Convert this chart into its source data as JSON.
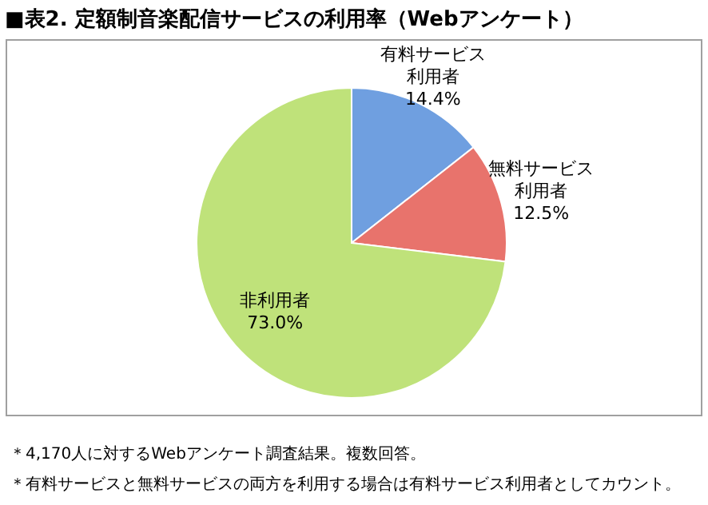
{
  "chart_data": {
    "type": "pie",
    "title": "■表2. 定額制音楽配信サービスの利用率（Webアンケート）",
    "categories": [
      "有料サービス利用者",
      "無料サービス利用者",
      "非利用者"
    ],
    "values": [
      14.4,
      12.5,
      73.0
    ],
    "colors": [
      "#6f9fe0",
      "#e8736c",
      "#bfe27a"
    ],
    "value_labels": [
      "14.4%",
      "12.5%",
      "73.0%"
    ],
    "annotations": [
      "＊4,170人に対するWebアンケート調査結果。複数回答。",
      "＊有料サービスと無料サービスの両方を利用する場合は有料サービス利用者としてカウント。"
    ]
  }
}
